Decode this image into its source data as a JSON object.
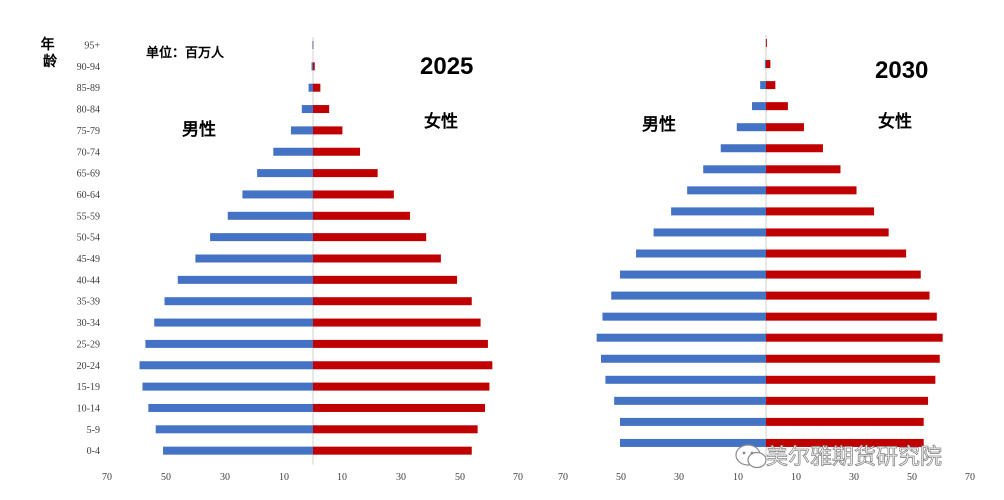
{
  "chart_data": [
    {
      "type": "bar",
      "title": "2025",
      "unit_label": "单位：百万人",
      "ylabel": "年龄",
      "male_label": "男性",
      "female_label": "女性",
      "categories": [
        "95+",
        "90-94",
        "85-89",
        "80-84",
        "75-79",
        "70-74",
        "65-69",
        "60-64",
        "55-59",
        "50-54",
        "45-49",
        "40-44",
        "35-39",
        "30-34",
        "25-29",
        "20-24",
        "15-19",
        "10-14",
        "5-9",
        "0-4"
      ],
      "series": [
        {
          "name": "男性",
          "color": "#4472C4",
          "values": [
            0.2,
            0.5,
            1.5,
            3.8,
            7.5,
            13.5,
            19,
            24,
            29,
            35,
            40,
            46,
            50.5,
            54,
            57,
            59,
            58,
            56,
            53.5,
            51
          ]
        },
        {
          "name": "女性",
          "color": "#C00000",
          "values": [
            0.1,
            0.6,
            2.5,
            5.5,
            10,
            16,
            22,
            27.5,
            33,
            38.5,
            43.5,
            49,
            54,
            57,
            59.5,
            61,
            60,
            58.5,
            56,
            54
          ]
        }
      ],
      "xticks": [
        "70",
        "50",
        "30",
        "10",
        "10",
        "30",
        "50",
        "70"
      ],
      "xlim": [
        -70,
        70
      ]
    },
    {
      "type": "bar",
      "title": "2030",
      "male_label": "男性",
      "female_label": "女性",
      "categories": [
        "95+",
        "90-94",
        "85-89",
        "80-84",
        "75-79",
        "70-74",
        "65-69",
        "60-64",
        "55-59",
        "50-54",
        "45-49",
        "40-44",
        "35-39",
        "30-34",
        "25-29",
        "20-24",
        "15-19",
        "10-14",
        "5-9",
        "0-4"
      ],
      "series": [
        {
          "name": "男性",
          "color": "#4472C4",
          "values": [
            0.1,
            0.4,
            2,
            4.8,
            10,
            15.5,
            21.5,
            27,
            32.5,
            38.5,
            44.5,
            50,
            53,
            56,
            58,
            56.5,
            55,
            52,
            50,
            50
          ]
        },
        {
          "name": "女性",
          "color": "#C00000",
          "values": [
            0.3,
            1.5,
            3.2,
            7.5,
            13,
            19.5,
            25.5,
            31,
            37,
            42,
            48,
            53,
            56,
            58.5,
            60.5,
            59.5,
            58,
            55.5,
            54,
            54
          ]
        }
      ],
      "xticks": [
        "70",
        "50",
        "30",
        "10",
        "10",
        "30",
        "50",
        "70"
      ],
      "xlim": [
        -70,
        70
      ]
    }
  ],
  "watermark": "美尔雅期货研究院",
  "watermark_icon": "wechat-icon"
}
